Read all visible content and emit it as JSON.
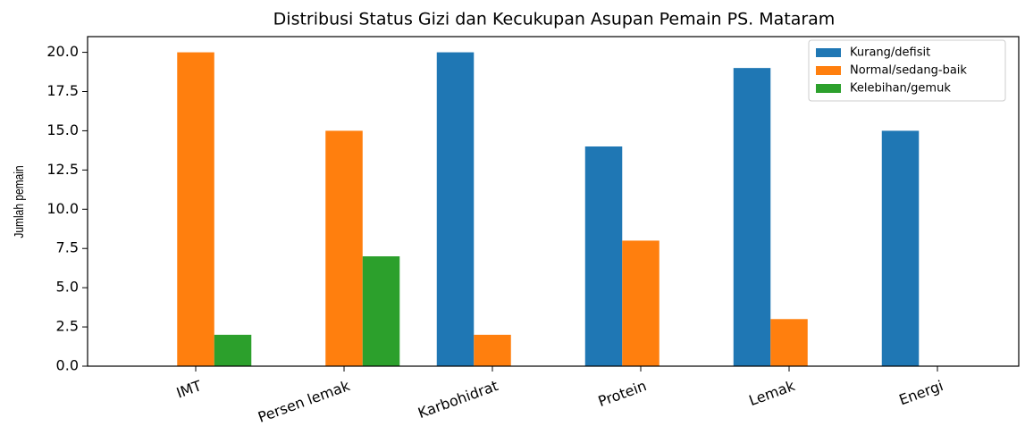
{
  "chart_data": {
    "type": "bar",
    "title": "Distribusi Status Gizi dan Kecukupan Asupan Pemain PS. Mataram",
    "y_label": "Jumlah pemain",
    "categories": [
      "IMT",
      "Persen lemak",
      "Karbohidrat",
      "Protein",
      "Lemak",
      "Energi"
    ],
    "series": [
      {
        "name": "Kurang/defisit",
        "color": "#1f77b4",
        "values": [
          0,
          0,
          20,
          14,
          19,
          15
        ]
      },
      {
        "name": "Normal/sedang-baik",
        "color": "#ff7f0e",
        "values": [
          20,
          15,
          2,
          8,
          3,
          0
        ]
      },
      {
        "name": "Kelebihan/gemuk",
        "color": "#2ca02c",
        "values": [
          2,
          7,
          0,
          0,
          0,
          0
        ]
      }
    ],
    "ylim": [
      0,
      21
    ],
    "yticks": [
      {
        "value": 0,
        "label": "0.0"
      },
      {
        "value": 2.5,
        "label": "2.5"
      },
      {
        "value": 5,
        "label": "5.0"
      },
      {
        "value": 7.5,
        "label": "7.5"
      },
      {
        "value": 10,
        "label": "10.0"
      },
      {
        "value": 12.5,
        "label": "12.5"
      },
      {
        "value": 15,
        "label": "15.0"
      },
      {
        "value": 17.5,
        "label": "17.5"
      },
      {
        "value": 20,
        "label": "20.0"
      }
    ],
    "legend": "upper right"
  }
}
